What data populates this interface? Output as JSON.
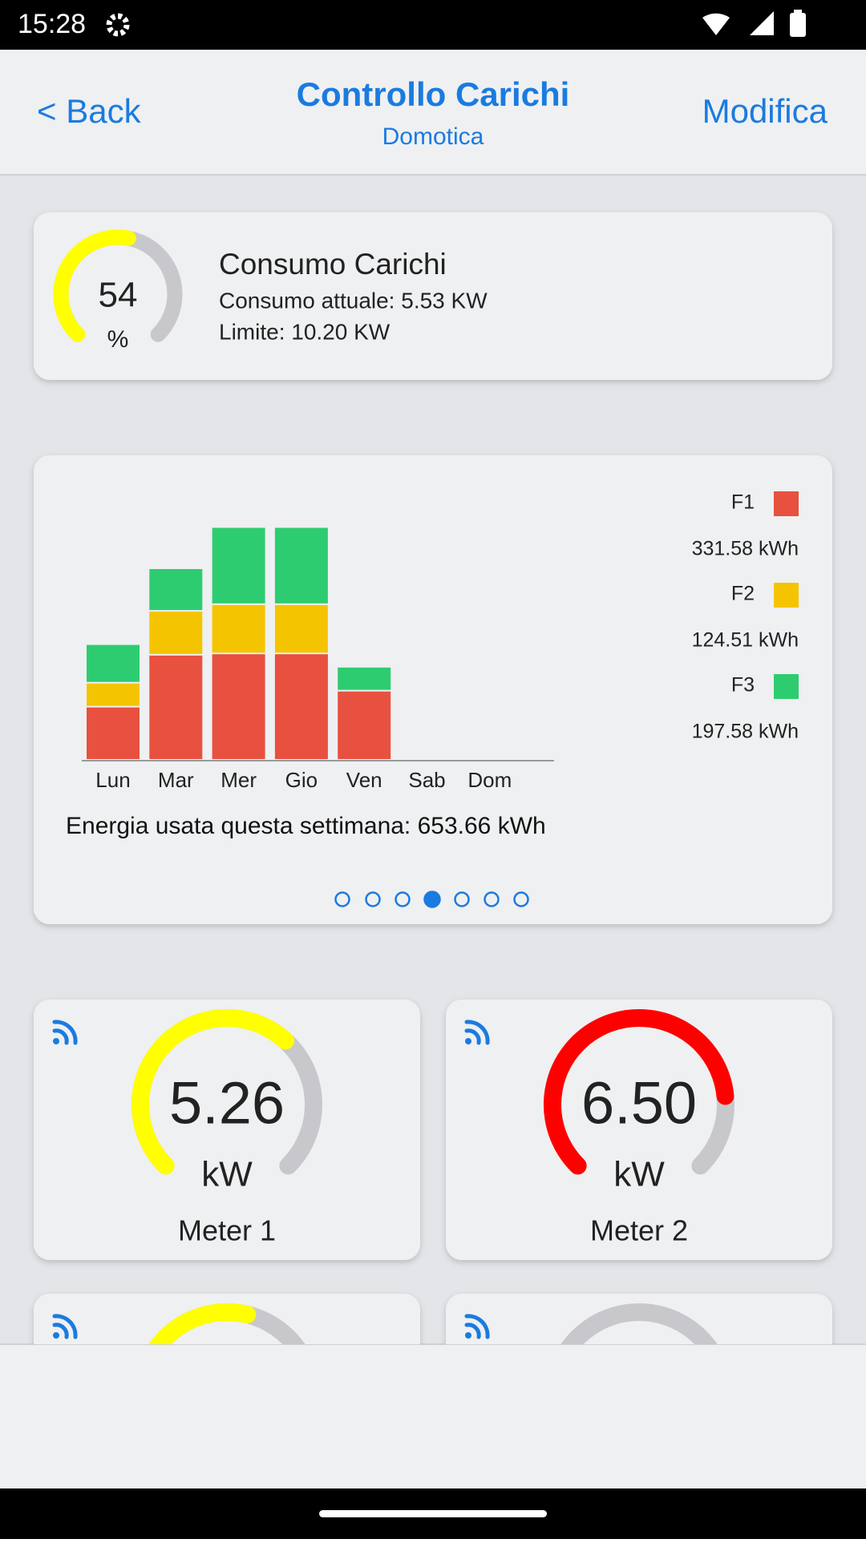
{
  "status_bar": {
    "time": "15:28"
  },
  "header": {
    "back": "< Back",
    "title": "Controllo Carichi",
    "subtitle": "Domotica",
    "action": "Modifica"
  },
  "summary": {
    "percent": 54,
    "unit": "%",
    "gauge_range": [
      0,
      100
    ],
    "color": "#ffff00",
    "title": "Consumo Carichi",
    "current": "Consumo attuale: 5.53 KW",
    "limit": "Limite: 10.20 KW"
  },
  "chart": {
    "type": "bar",
    "stacked": true,
    "categories": [
      "Lun",
      "Mar",
      "Mer",
      "Gio",
      "Ven",
      "Sab",
      "Dom"
    ],
    "series": [
      {
        "name": "F1",
        "color": "#e85040",
        "values": [
          40,
          79,
          80,
          80,
          52,
          0,
          0
        ],
        "total_label": "331.58 kWh"
      },
      {
        "name": "F2",
        "color": "#f5c400",
        "values": [
          18,
          33,
          37,
          37,
          0,
          0,
          0
        ],
        "total_label": "124.51 kWh"
      },
      {
        "name": "F3",
        "color": "#2ecc71",
        "values": [
          29,
          32,
          58,
          58,
          18,
          0,
          0
        ],
        "total_label": "197.58 kWh"
      }
    ],
    "caption": "Energia usata questa settimana: 653.66 kWh"
  },
  "meters": [
    {
      "name": "Meter 1",
      "value": 5.26,
      "value_label": "5.26",
      "unit": "kW",
      "color": "#ffff00",
      "gauge_range": [
        0,
        8
      ]
    },
    {
      "name": "Meter 2",
      "value": 6.5,
      "value_label": "6.50",
      "unit": "kW",
      "color": "#ff0000",
      "gauge_range": [
        0,
        8
      ]
    },
    {
      "value": 4.4,
      "color": "#ffff00",
      "gauge_range": [
        0,
        8
      ]
    },
    {
      "value": 0,
      "color": "#ffff00",
      "gauge_range": [
        0,
        8
      ]
    }
  ]
}
